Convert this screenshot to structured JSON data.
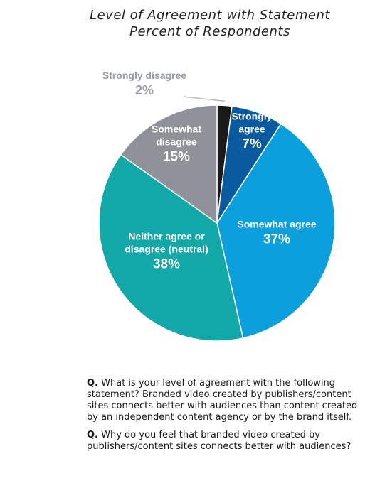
{
  "chart_data": {
    "type": "pie",
    "title": "Level of Agreement with Statement",
    "subtitle": "Percent of Respondents",
    "slices": [
      {
        "label": "Strongly disagree",
        "value": 2,
        "value_label": "2%",
        "color": "#1a1a1a"
      },
      {
        "label": "Strongly agree",
        "value": 7,
        "value_label": "7%",
        "color": "#0a5aa0"
      },
      {
        "label": "Somewhat agree",
        "value": 37,
        "value_label": "37%",
        "color": "#0b9fdc"
      },
      {
        "label": "Neither agree or disagree (neutral)",
        "value": 38,
        "value_label": "38%",
        "color": "#13a8a8"
      },
      {
        "label": "Somewhat disagree",
        "value": 15,
        "value_label": "15%",
        "color": "#8f9399"
      }
    ],
    "label_colors": {
      "inside": "#ffffff",
      "outside": "#9a9ea3"
    },
    "legend": "none"
  },
  "questions": [
    {
      "prefix": "Q.",
      "text": "What is your level of agreement with the following statement? Branded video created by publishers/content sites connects better with audiences than content created by an independent content agency or by the brand itself."
    },
    {
      "prefix": "Q.",
      "text": "Why do you feel that branded video created by publishers/content sites connects better with audiences?"
    }
  ]
}
